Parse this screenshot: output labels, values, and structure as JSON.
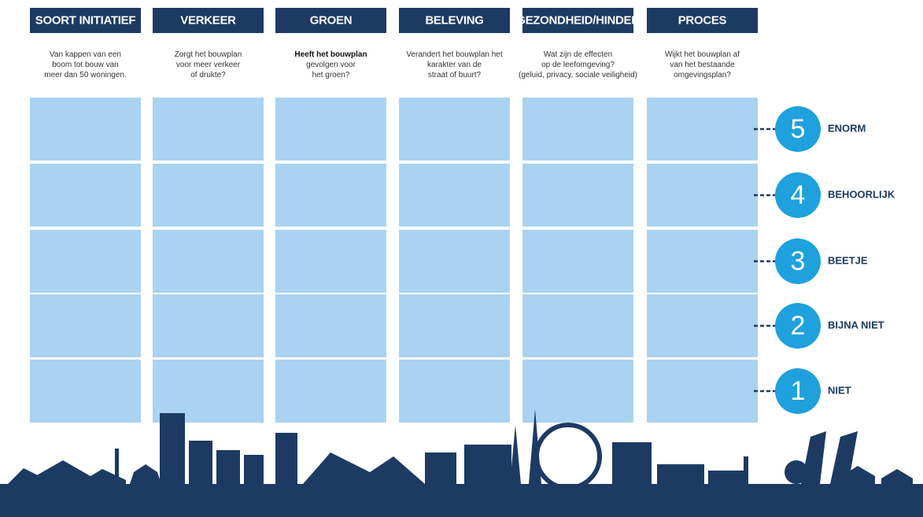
{
  "columns": [
    {
      "header": "SOORT INITIATIEF",
      "description": [
        "Van kappen van een",
        "boom tot bouw van",
        "meer dan 50 woningen."
      ]
    },
    {
      "header": "VERKEER",
      "description": [
        "Zorgt het bouwplan",
        "voor meer verkeer",
        "of drukte?"
      ]
    },
    {
      "header": "GROEN",
      "description": [
        "Heeft het bouwplan",
        "gevolgen voor",
        "het groen?"
      ]
    },
    {
      "header": "BELEVING",
      "description": [
        "Verandert het bouwplan het",
        "karakter van de",
        "straat of buurt?"
      ]
    },
    {
      "header": "GEZONDHEID/HINDER",
      "description": [
        "Wat zijn de effecten",
        "op de leefomgeving?",
        "(geluid, privacy, sociale veiligheid)"
      ]
    },
    {
      "header": "PROCES",
      "description": [
        "Wijkt het bouwplan af",
        "van het bestaande",
        "omgevingsplan?"
      ]
    }
  ],
  "scale": [
    {
      "number": 5,
      "label": "ENORM"
    },
    {
      "number": 4,
      "label": "BEHOORLIJK"
    },
    {
      "number": 3,
      "label": "BEETJE"
    },
    {
      "number": 2,
      "label": "BIJNA NIET"
    },
    {
      "number": 1,
      "label": "NIET"
    }
  ]
}
